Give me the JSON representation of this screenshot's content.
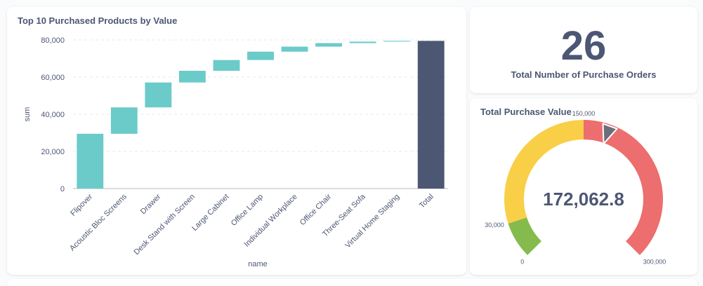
{
  "waterfall": {
    "title": "Top 10 Purchased Products by Value",
    "chart_data": {
      "type": "bar",
      "subtype": "waterfall",
      "title": "Top 10 Purchased Products by Value",
      "xlabel": "name",
      "ylabel": "sum",
      "ylim": [
        0,
        80000
      ],
      "y_ticks": [
        0,
        20000,
        40000,
        60000,
        80000
      ],
      "y_tick_labels": [
        "0",
        "20,000",
        "40,000",
        "60,000",
        "80,000"
      ],
      "grid": true,
      "categories": [
        "Flipover",
        "Acoustic Bloc Screens",
        "Drawer",
        "Desk Stand with Screen",
        "Large Cabinet",
        "Office Lamp",
        "Individual Workplace",
        "Office Chair",
        "Three-Seat Sofa",
        "Virtual Home Staging",
        "Total"
      ],
      "values": [
        29500,
        14200,
        13400,
        6300,
        5800,
        4500,
        2700,
        1900,
        800,
        400,
        79500
      ],
      "increase_color": "#6bcbc9",
      "total_color": "#4c5773"
    }
  },
  "orders": {
    "value": "26",
    "label": "Total Number of Purchase Orders"
  },
  "gauge": {
    "title": "Total Purchase Value",
    "value_label": "172,062.8",
    "chart_data": {
      "type": "gauge",
      "value": 172062.8,
      "min": 0,
      "max": 300000,
      "segments": [
        {
          "from": 0,
          "to": 30000,
          "color": "#84bb4c"
        },
        {
          "from": 30000,
          "to": 150000,
          "color": "#f9cf48"
        },
        {
          "from": 150000,
          "to": 300000,
          "color": "#ed6e6e"
        }
      ],
      "tick_values": [
        0,
        30000,
        150000,
        300000
      ],
      "tick_labels": [
        "0",
        "30,000",
        "150,000",
        "300,000"
      ]
    }
  }
}
